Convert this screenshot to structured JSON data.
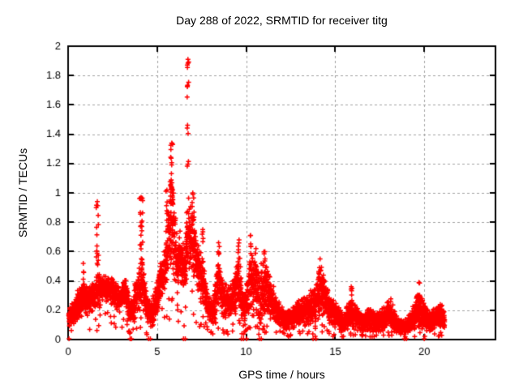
{
  "colors": {
    "background": "#ffffff",
    "marker": "#ff0000",
    "axis": "#000000",
    "grid": "#a0a0a0",
    "text": "#000000"
  },
  "chart_data": {
    "type": "scatter",
    "title": "Day 288 of 2022, SRMTID for receiver titg",
    "xlabel": "GPS time / hours",
    "ylabel": "SRMTID / TECUs",
    "xlim": [
      0,
      24
    ],
    "ylim": [
      0,
      2
    ],
    "xticks": [
      0,
      5,
      10,
      15,
      20
    ],
    "yticks": [
      0,
      0.2,
      0.4,
      0.6,
      0.8,
      1,
      1.2,
      1.4,
      1.6,
      1.8,
      2
    ],
    "ytick_labels": [
      "0",
      "0.2",
      "0.4",
      "0.6",
      "0.8",
      "1",
      "1.2",
      "1.4",
      "1.6",
      "1.8",
      "2"
    ],
    "xtick_labels": [
      "0",
      "5",
      "10",
      "15",
      "20"
    ],
    "grid": true,
    "legend": null,
    "marker": "plus",
    "series_name": "SRMTID",
    "time_range": [
      0.03,
      21.15
    ],
    "sampling_interval_hours": 0.008333,
    "notable_peaks": [
      {
        "t": 6.73,
        "y": 1.91
      },
      {
        "t": 5.82,
        "y": 1.34
      },
      {
        "t": 4.1,
        "y": 0.97
      },
      {
        "t": 1.65,
        "y": 0.94
      },
      {
        "t": 9.6,
        "y": 0.68
      },
      {
        "t": 10.25,
        "y": 0.71
      }
    ],
    "band_envelope": [
      [
        0.03,
        0.08,
        0.22
      ],
      [
        0.3,
        0.1,
        0.27
      ],
      [
        0.6,
        0.14,
        0.36
      ],
      [
        0.85,
        0.16,
        0.4
      ],
      [
        1.1,
        0.16,
        0.36
      ],
      [
        1.4,
        0.19,
        0.4
      ],
      [
        1.65,
        0.2,
        0.46
      ],
      [
        1.95,
        0.24,
        0.46
      ],
      [
        2.3,
        0.25,
        0.46
      ],
      [
        2.6,
        0.21,
        0.42
      ],
      [
        2.9,
        0.18,
        0.36
      ],
      [
        3.2,
        0.24,
        0.44
      ],
      [
        3.45,
        0.08,
        0.3
      ],
      [
        3.65,
        0.1,
        0.34
      ],
      [
        3.9,
        0.16,
        0.48
      ],
      [
        4.15,
        0.22,
        0.58
      ],
      [
        4.4,
        0.12,
        0.34
      ],
      [
        4.65,
        0.07,
        0.26
      ],
      [
        4.9,
        0.12,
        0.36
      ],
      [
        5.15,
        0.26,
        0.52
      ],
      [
        5.4,
        0.32,
        0.62
      ],
      [
        5.6,
        0.36,
        0.8
      ],
      [
        5.82,
        0.42,
        1.3
      ],
      [
        6.0,
        0.36,
        0.95
      ],
      [
        6.15,
        0.3,
        0.72
      ],
      [
        6.35,
        0.34,
        0.78
      ],
      [
        6.55,
        0.26,
        0.68
      ],
      [
        6.75,
        0.45,
        1.02
      ],
      [
        6.95,
        0.44,
        0.96
      ],
      [
        7.15,
        0.38,
        0.78
      ],
      [
        7.35,
        0.28,
        0.66
      ],
      [
        7.6,
        0.2,
        0.55
      ],
      [
        7.85,
        0.12,
        0.32
      ],
      [
        8.15,
        0.1,
        0.3
      ],
      [
        8.45,
        0.2,
        0.62
      ],
      [
        8.7,
        0.14,
        0.42
      ],
      [
        9.0,
        0.12,
        0.36
      ],
      [
        9.3,
        0.14,
        0.42
      ],
      [
        9.6,
        0.18,
        0.64
      ],
      [
        9.85,
        0.06,
        0.32
      ],
      [
        10.1,
        0.1,
        0.5
      ],
      [
        10.3,
        0.14,
        0.65
      ],
      [
        10.55,
        0.14,
        0.58
      ],
      [
        10.8,
        0.08,
        0.55
      ],
      [
        11.1,
        0.14,
        0.55
      ],
      [
        11.4,
        0.12,
        0.42
      ],
      [
        11.7,
        0.1,
        0.3
      ],
      [
        12.0,
        0.07,
        0.24
      ],
      [
        12.4,
        0.06,
        0.21
      ],
      [
        12.8,
        0.08,
        0.26
      ],
      [
        13.2,
        0.08,
        0.29
      ],
      [
        13.6,
        0.1,
        0.34
      ],
      [
        13.9,
        0.06,
        0.38
      ],
      [
        14.15,
        0.14,
        0.5
      ],
      [
        14.45,
        0.11,
        0.42
      ],
      [
        14.75,
        0.08,
        0.32
      ],
      [
        15.05,
        0.06,
        0.26
      ],
      [
        15.45,
        0.04,
        0.17
      ],
      [
        15.9,
        0.07,
        0.32
      ],
      [
        16.25,
        0.05,
        0.22
      ],
      [
        16.6,
        0.04,
        0.18
      ],
      [
        17.0,
        0.05,
        0.24
      ],
      [
        17.4,
        0.04,
        0.18
      ],
      [
        17.8,
        0.06,
        0.24
      ],
      [
        18.1,
        0.07,
        0.29
      ],
      [
        18.5,
        0.04,
        0.16
      ],
      [
        18.9,
        0.02,
        0.13
      ],
      [
        19.3,
        0.05,
        0.22
      ],
      [
        19.6,
        0.08,
        0.34
      ],
      [
        19.95,
        0.06,
        0.27
      ],
      [
        20.3,
        0.04,
        0.19
      ],
      [
        20.6,
        0.06,
        0.22
      ],
      [
        20.9,
        0.08,
        0.27
      ],
      [
        21.15,
        0.06,
        0.2
      ]
    ],
    "spikes": [
      [
        0.85,
        0.05,
        0.3,
        0.52,
        8
      ],
      [
        1.64,
        0.07,
        0.42,
        0.94,
        18
      ],
      [
        4.1,
        0.09,
        0.5,
        0.97,
        24
      ],
      [
        5.55,
        0.06,
        0.72,
        1.02,
        10
      ],
      [
        5.82,
        0.07,
        0.92,
        1.34,
        26
      ],
      [
        6.73,
        0.05,
        1.05,
        1.91,
        15
      ],
      [
        7.0,
        0.08,
        0.75,
        1.0,
        10
      ],
      [
        7.56,
        0.03,
        0.35,
        0.75,
        9
      ],
      [
        8.45,
        0.05,
        0.45,
        0.66,
        8
      ],
      [
        9.6,
        0.06,
        0.45,
        0.68,
        9
      ],
      [
        10.25,
        0.05,
        0.48,
        0.71,
        8
      ],
      [
        10.55,
        0.05,
        0.42,
        0.62,
        7
      ],
      [
        11.05,
        0.06,
        0.4,
        0.6,
        8
      ],
      [
        14.15,
        0.08,
        0.36,
        0.55,
        9
      ],
      [
        15.9,
        0.06,
        0.22,
        0.36,
        6
      ],
      [
        19.7,
        0.07,
        0.24,
        0.39,
        8
      ]
    ],
    "zero_markers": [
      0.05,
      3.48,
      3.56,
      4.52,
      4.62,
      6.48,
      6.58,
      9.73,
      9.85,
      10.02,
      10.74,
      10.85,
      13.76,
      13.92,
      18.88,
      19.0,
      20.0
    ]
  }
}
